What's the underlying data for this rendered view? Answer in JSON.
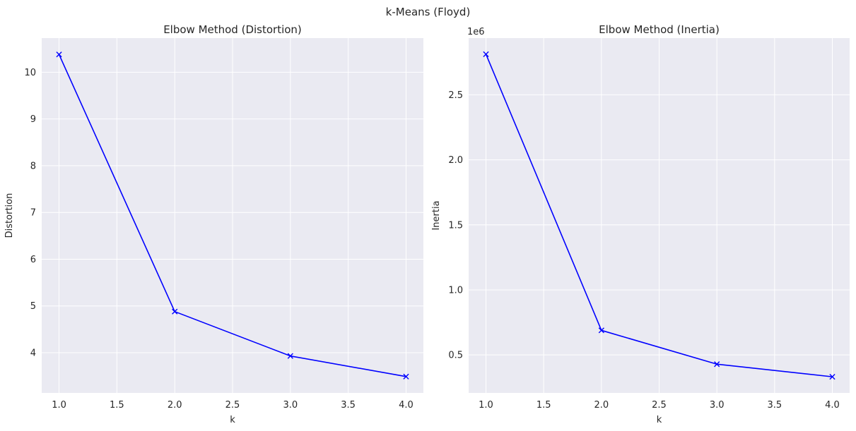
{
  "figure": {
    "suptitle": "k-Means (Floyd)"
  },
  "colors": {
    "axes_background": "#eaeaf2",
    "grid": "#ffffff",
    "line": "#0000ff",
    "text": "#262626"
  },
  "chart_data": [
    {
      "type": "line",
      "title": "Elbow Method (Distortion)",
      "xlabel": "k",
      "ylabel": "Distortion",
      "x": [
        1,
        2,
        3,
        4
      ],
      "series": [
        {
          "values": [
            10.38,
            4.88,
            3.93,
            3.49
          ]
        }
      ],
      "marker": "x",
      "xlim": [
        0.85,
        4.15
      ],
      "ylim": [
        3.14,
        10.73
      ],
      "xticks": [
        1.0,
        1.5,
        2.0,
        2.5,
        3.0,
        3.5,
        4.0
      ],
      "xtick_labels": [
        "1.0",
        "1.5",
        "2.0",
        "2.5",
        "3.0",
        "3.5",
        "4.0"
      ],
      "yticks": [
        4,
        5,
        6,
        7,
        8,
        9,
        10
      ],
      "ytick_labels": [
        "4",
        "5",
        "6",
        "7",
        "8",
        "9",
        "10"
      ],
      "offset_text": "",
      "grid": true
    },
    {
      "type": "line",
      "title": "Elbow Method (Inertia)",
      "xlabel": "k",
      "ylabel": "Inertia",
      "x": [
        1,
        2,
        3,
        4
      ],
      "series": [
        {
          "values": [
            2812000,
            689000,
            429000,
            332000
          ]
        }
      ],
      "marker": "x",
      "xlim": [
        0.85,
        4.15
      ],
      "ylim": [
        208000,
        2936000
      ],
      "xticks": [
        1.0,
        1.5,
        2.0,
        2.5,
        3.0,
        3.5,
        4.0
      ],
      "xtick_labels": [
        "1.0",
        "1.5",
        "2.0",
        "2.5",
        "3.0",
        "3.5",
        "4.0"
      ],
      "yticks": [
        500000,
        1000000,
        1500000,
        2000000,
        2500000
      ],
      "ytick_labels": [
        "0.5",
        "1.0",
        "1.5",
        "2.0",
        "2.5"
      ],
      "offset_text": "1e6",
      "grid": true
    }
  ]
}
